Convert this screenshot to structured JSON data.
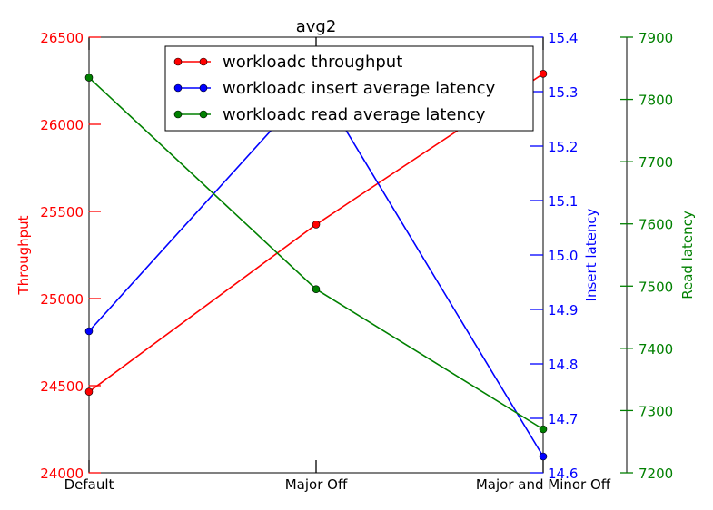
{
  "chart_data": {
    "type": "line",
    "title": "avg2",
    "categories": [
      "Default",
      "Major Off",
      "Major and Minor Off"
    ],
    "axes": [
      {
        "id": "throughput",
        "label": "Throughput",
        "side": "left",
        "color": "#ff0000",
        "ylim": [
          24000,
          26500
        ],
        "ticks": [
          "24000",
          "24500",
          "25000",
          "25500",
          "26000",
          "26500"
        ]
      },
      {
        "id": "insert",
        "label": "Insert latency",
        "side": "right",
        "color": "#0000ff",
        "ylim": [
          14.6,
          15.4
        ],
        "ticks": [
          "14.6",
          "14.7",
          "14.8",
          "14.9",
          "15.0",
          "15.1",
          "15.2",
          "15.3",
          "15.4"
        ]
      },
      {
        "id": "read",
        "label": "Read latency",
        "side": "right-offset",
        "color": "#008000",
        "ylim": [
          7200,
          7900
        ],
        "ticks": [
          "7200",
          "7300",
          "7400",
          "7500",
          "7600",
          "7700",
          "7800",
          "7900"
        ]
      }
    ],
    "series": [
      {
        "name": "workloadc throughput",
        "axis": "throughput",
        "color": "#ff0000",
        "values": [
          24465,
          25425,
          26290
        ]
      },
      {
        "name": "workloadc insert average latency",
        "axis": "insert",
        "color": "#0000ff",
        "values": [
          14.86,
          15.32,
          14.63
        ]
      },
      {
        "name": "workloadc read average latency",
        "axis": "read",
        "color": "#008000",
        "values": [
          7835,
          7495,
          7270
        ]
      }
    ],
    "legend": "top-center",
    "grid": false
  }
}
